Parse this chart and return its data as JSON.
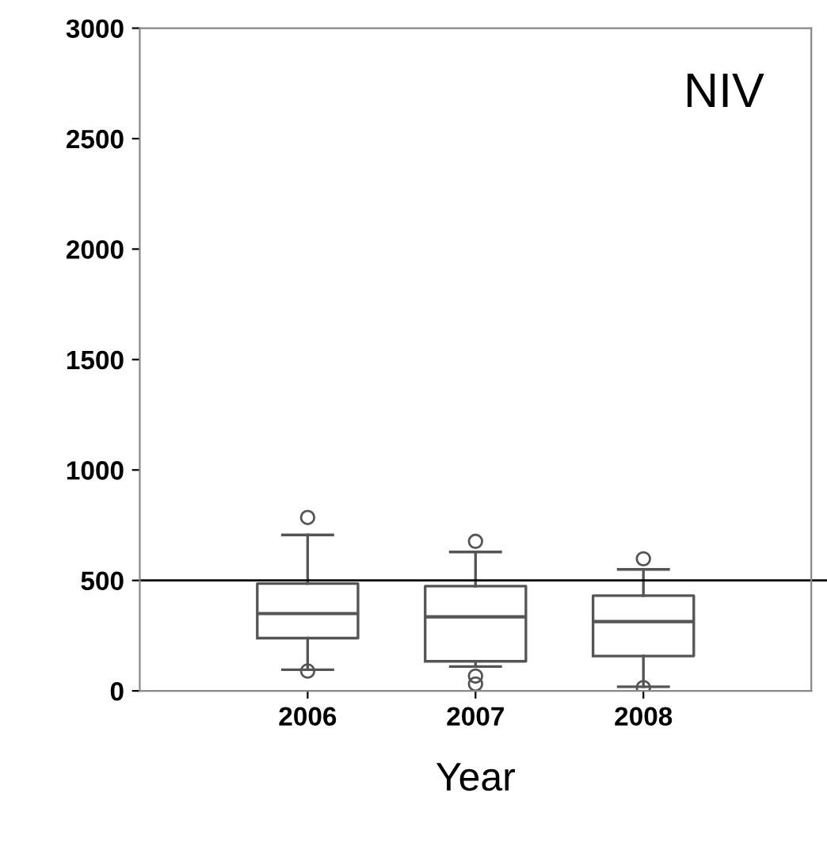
{
  "chart_data": {
    "type": "box",
    "categories": [
      "2006",
      "2007",
      "2008"
    ],
    "xlabel": "Year",
    "annotations": [
      "NIV"
    ],
    "boxes": [
      {
        "low": 96,
        "q1": 239,
        "median": 350,
        "q3": 486,
        "high": 706,
        "outliers": [
          785,
          90
        ]
      },
      {
        "low": 110,
        "q1": 134,
        "median": 335,
        "q3": 474,
        "high": 629,
        "outliers": [
          677,
          67,
          31
        ]
      },
      {
        "low": 19,
        "q1": 158,
        "median": 314,
        "q3": 431,
        "high": 550,
        "outliers": [
          598,
          15
        ]
      }
    ],
    "ylim": [
      0,
      3000
    ],
    "yticks": [
      0,
      500,
      1000,
      1500,
      2000,
      2500,
      3000
    ],
    "ref_lines": [
      {
        "axis": "y",
        "value": 500,
        "color": "#000000"
      }
    ],
    "grid": false,
    "legend": false
  }
}
